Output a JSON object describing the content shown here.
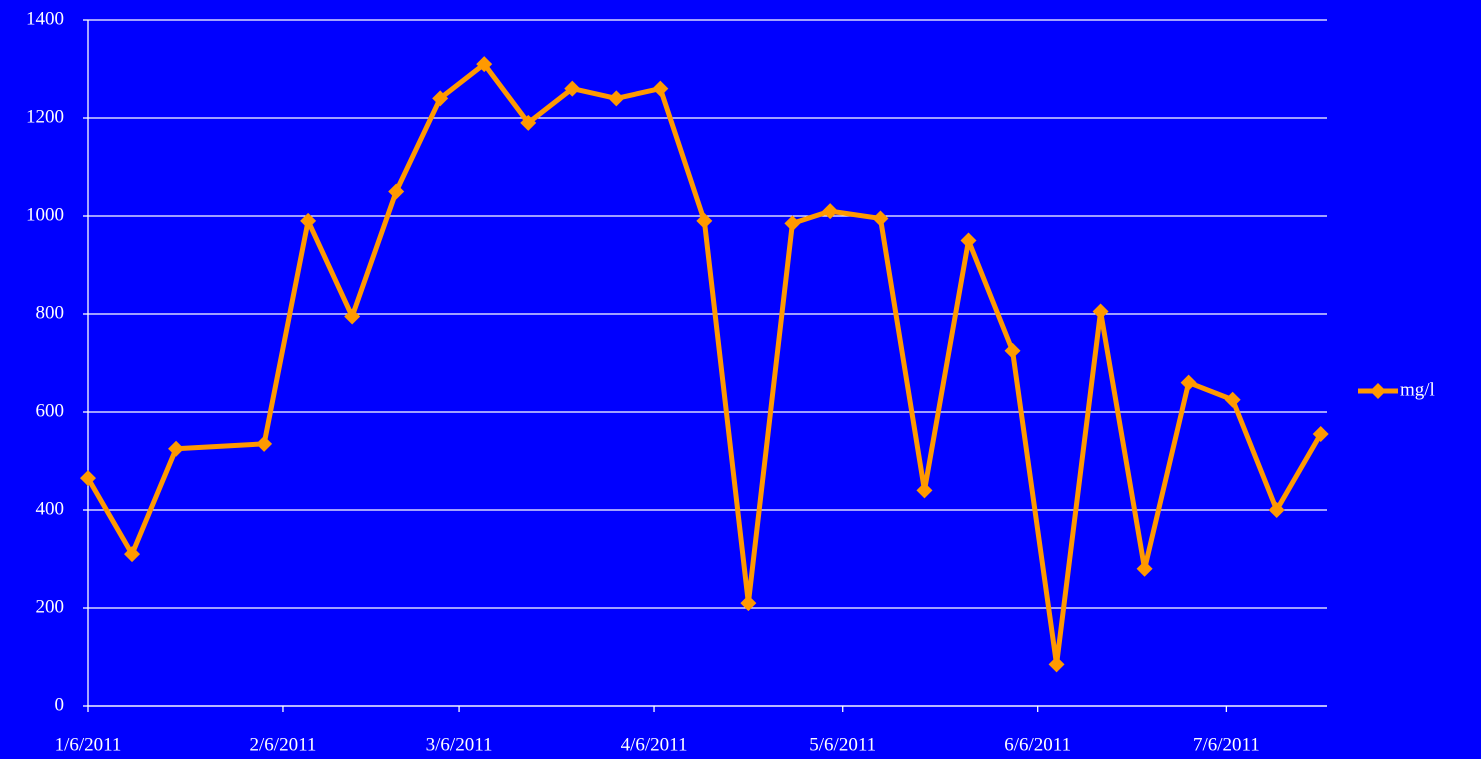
{
  "chart_data": {
    "type": "line",
    "x": [
      "2011-01-06",
      "2011-01-13",
      "2011-01-20",
      "2011-02-03",
      "2011-02-10",
      "2011-02-17",
      "2011-02-24",
      "2011-03-03",
      "2011-03-10",
      "2011-03-17",
      "2011-03-24",
      "2011-03-31",
      "2011-04-07",
      "2011-04-14",
      "2011-04-21",
      "2011-04-28",
      "2011-05-04",
      "2011-05-12",
      "2011-05-19",
      "2011-05-26",
      "2011-06-02",
      "2011-06-09",
      "2011-06-16",
      "2011-06-23",
      "2011-06-30",
      "2011-07-07",
      "2011-07-14",
      "2011-07-21"
    ],
    "series": [
      {
        "name": "mg/l",
        "color": "#ff9900",
        "values": [
          465,
          310,
          525,
          535,
          990,
          795,
          1050,
          1240,
          1310,
          1190,
          1260,
          1240,
          1260,
          990,
          210,
          985,
          1010,
          995,
          440,
          950,
          725,
          85,
          805,
          280,
          660,
          625,
          400,
          555
        ]
      }
    ],
    "xlim": [
      "2011-01-06",
      "2011-07-22"
    ],
    "xticks": [
      {
        "value": "2011-01-06",
        "label": "1/6/2011"
      },
      {
        "value": "2011-02-06",
        "label": "2/6/2011"
      },
      {
        "value": "2011-03-06",
        "label": "3/6/2011"
      },
      {
        "value": "2011-04-06",
        "label": "4/6/2011"
      },
      {
        "value": "2011-05-06",
        "label": "5/6/2011"
      },
      {
        "value": "2011-06-06",
        "label": "6/6/2011"
      },
      {
        "value": "2011-07-06",
        "label": "7/6/2011"
      }
    ],
    "ylim": [
      0,
      1400
    ],
    "yticks": [
      0,
      200,
      400,
      600,
      800,
      1000,
      1200,
      1400
    ],
    "grid": true,
    "legend": "right"
  }
}
